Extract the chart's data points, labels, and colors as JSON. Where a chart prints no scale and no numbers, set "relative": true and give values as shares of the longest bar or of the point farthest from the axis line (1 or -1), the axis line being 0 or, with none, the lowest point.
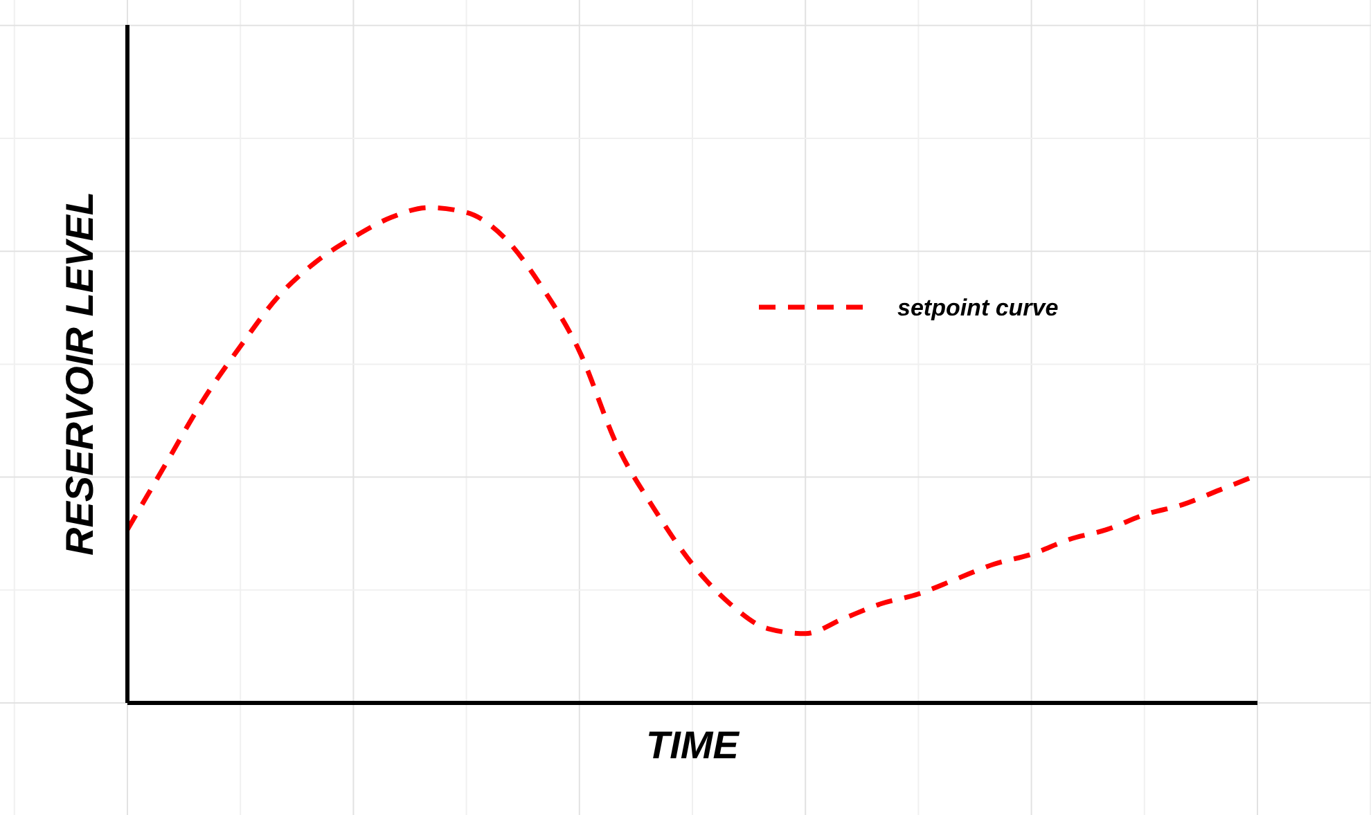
{
  "chart_data": {
    "type": "line",
    "xlabel": "TIME",
    "ylabel": "RESERVOIR LEVEL",
    "relative": true,
    "grid": true,
    "legend": "top right",
    "line_style": "dashed",
    "categories": [
      null,
      null,
      null,
      null,
      null,
      null,
      null,
      null,
      null,
      null,
      null,
      null,
      null,
      null,
      null,
      null,
      null,
      null,
      null,
      null,
      null,
      null,
      null,
      null,
      null,
      null,
      null,
      null,
      null,
      null,
      null
    ],
    "series": [
      {
        "name": "setpoint curve",
        "color": "#ff0000",
        "values": [
          0.35,
          0.48,
          0.61,
          0.72,
          0.82,
          0.89,
          0.94,
          0.98,
          1,
          0.99,
          0.94,
          0.84,
          0.71,
          0.52,
          0.39,
          0.28,
          0.2,
          0.15,
          0.14,
          0.17,
          0.2,
          0.22,
          0.25,
          0.28,
          0.3,
          0.33,
          0.35,
          0.38,
          0.4,
          0.43,
          0.46
        ]
      }
    ]
  }
}
